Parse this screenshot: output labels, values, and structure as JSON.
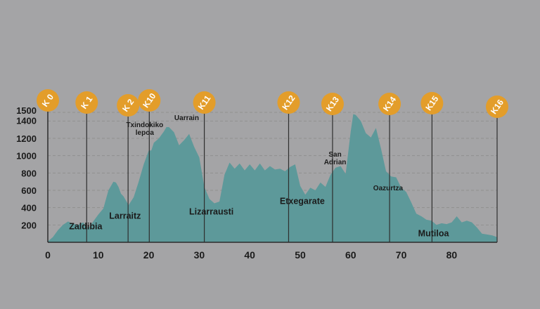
{
  "chart_data": {
    "type": "area",
    "title": "",
    "xlabel": "",
    "ylabel": "",
    "xlim": [
      0,
      89
    ],
    "ylim": [
      0,
      1500
    ],
    "x_ticks": [
      0,
      10,
      20,
      30,
      40,
      50,
      60,
      70,
      80
    ],
    "y_ticks": [
      200,
      400,
      600,
      800,
      1000,
      1200,
      1400,
      1500
    ],
    "grid": "dashed horizontal",
    "colors": {
      "fill": "#5d999a",
      "badge": "#e39d2a",
      "marker_line": "#2e2e2e",
      "grid": "#8f8f8f"
    },
    "series": [
      {
        "x": [
          0,
          1,
          2,
          3,
          4,
          5,
          6,
          7,
          8,
          9,
          10,
          11,
          12,
          13,
          13.5,
          14,
          14.5,
          15,
          16,
          17,
          18,
          19,
          20,
          20.5,
          21,
          22,
          23,
          23.5,
          24,
          25,
          26,
          27,
          28,
          29,
          30,
          31,
          32,
          33,
          34,
          35,
          36,
          37,
          38,
          39,
          40,
          41,
          42,
          43,
          44,
          45,
          46,
          47,
          48,
          49,
          50,
          51,
          52,
          53,
          54,
          55,
          56,
          57,
          58,
          59,
          60,
          60.5,
          61,
          62,
          63,
          64,
          65,
          66,
          67,
          68,
          69,
          70,
          71,
          72,
          73,
          74,
          75,
          76,
          77,
          78,
          79,
          80,
          81,
          82,
          83,
          84,
          85,
          86,
          87,
          88,
          89
        ],
        "y": [
          10,
          60,
          140,
          200,
          240,
          215,
          200,
          230,
          160,
          240,
          320,
          390,
          600,
          700,
          690,
          640,
          560,
          530,
          430,
          520,
          700,
          900,
          1060,
          1060,
          1150,
          1200,
          1280,
          1330,
          1330,
          1270,
          1120,
          1180,
          1250,
          1100,
          980,
          640,
          500,
          450,
          470,
          780,
          920,
          850,
          910,
          830,
          900,
          830,
          910,
          830,
          880,
          840,
          850,
          820,
          870,
          900,
          650,
          550,
          630,
          600,
          690,
          640,
          780,
          860,
          880,
          790,
          1280,
          1480,
          1470,
          1400,
          1260,
          1210,
          1320,
          1080,
          820,
          760,
          750,
          630,
          580,
          460,
          330,
          300,
          260,
          250,
          200,
          220,
          210,
          230,
          300,
          230,
          250,
          230,
          170,
          100,
          90,
          80,
          60
        ]
      }
    ],
    "markers": [
      {
        "label": "K 0",
        "x": 0
      },
      {
        "label": "K 1",
        "x": 7.7
      },
      {
        "label": "K 2",
        "x": 15.9
      },
      {
        "label": "K10",
        "x": 20.1
      },
      {
        "label": "K11",
        "x": 31.0
      },
      {
        "label": "K12",
        "x": 47.7
      },
      {
        "label": "K13",
        "x": 56.4
      },
      {
        "label": "K14",
        "x": 67.7
      },
      {
        "label": "K15",
        "x": 76.1
      },
      {
        "label": "K16",
        "x": 89.0
      }
    ],
    "places": [
      {
        "name": "Zaldibia",
        "x": 7.5,
        "y": 150
      },
      {
        "name": "Larraitz",
        "x": 15.3,
        "y": 270
      },
      {
        "name": "Txindokiko",
        "x": 19.2,
        "y": 1330
      },
      {
        "name": "lepoa",
        "x": 19.2,
        "y": 1240
      },
      {
        "name": "Uarrain",
        "x": 27.5,
        "y": 1410
      },
      {
        "name": "Lizarrausti",
        "x": 32.4,
        "y": 320
      },
      {
        "name": "Etxegarate",
        "x": 50.4,
        "y": 440
      },
      {
        "name": "San",
        "x": 56.9,
        "y": 990
      },
      {
        "name": "Adrian",
        "x": 56.9,
        "y": 900
      },
      {
        "name": "Oazurtza",
        "x": 67.4,
        "y": 600
      },
      {
        "name": "Mutiloa",
        "x": 76.4,
        "y": 70
      }
    ]
  }
}
